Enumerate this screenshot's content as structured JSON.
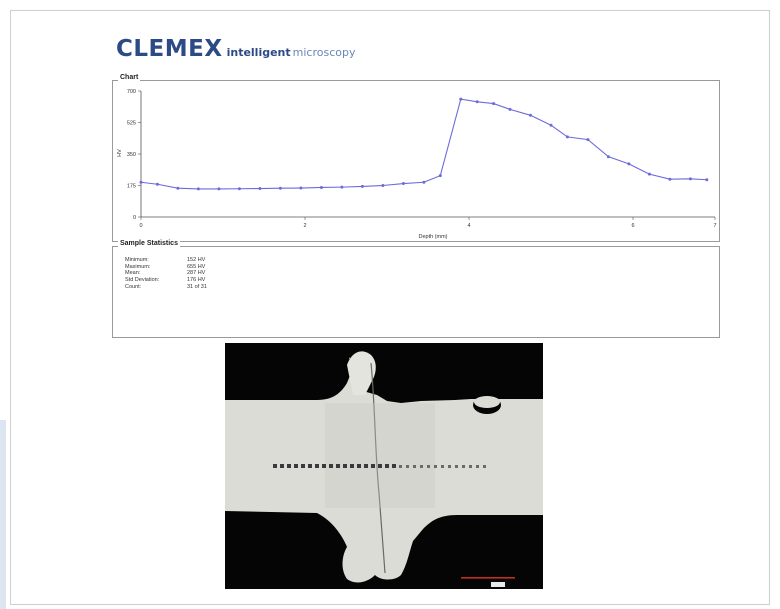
{
  "logo": {
    "brand": "CLEMEX",
    "tagline_bold": "intelligent",
    "tagline_light": "microscopy"
  },
  "chart_panel": {
    "legend": "Chart"
  },
  "chart_data": {
    "type": "line",
    "title": "",
    "xlabel": "Depth (mm)",
    "ylabel": "HV",
    "xlim": [
      0,
      7
    ],
    "ylim": [
      0,
      700
    ],
    "x_ticks": [
      "0",
      "2",
      "4",
      "6",
      "7"
    ],
    "x_tick_values": [
      0,
      2,
      4,
      6,
      7
    ],
    "y_ticks": [
      "0",
      "175",
      "350",
      "525",
      "700"
    ],
    "y_tick_values": [
      0,
      175,
      350,
      525,
      700
    ],
    "grid": false,
    "legend": "none",
    "series": [
      {
        "color": "#6b6bdc",
        "x": [
          0.0,
          0.2,
          0.45,
          0.7,
          0.95,
          1.2,
          1.45,
          1.7,
          1.95,
          2.2,
          2.45,
          2.7,
          2.95,
          3.2,
          3.45,
          3.65,
          3.9,
          4.1,
          4.3,
          4.5,
          4.75,
          5.0,
          5.2,
          5.45,
          5.7,
          5.95,
          6.2,
          6.45,
          6.7,
          6.9
        ],
        "y": [
          193,
          182,
          160,
          156,
          156,
          157,
          158,
          160,
          161,
          164,
          166,
          170,
          175,
          186,
          193,
          230,
          655,
          640,
          630,
          598,
          565,
          510,
          445,
          430,
          335,
          295,
          238,
          210,
          212,
          207
        ]
      }
    ]
  },
  "stats": {
    "legend": "Sample Statistics",
    "rows": [
      {
        "label": "Minimum:",
        "value": "152 HV"
      },
      {
        "label": "Maximum:",
        "value": "655 HV"
      },
      {
        "label": "Mean:",
        "value": "287 HV"
      },
      {
        "label": "Std Deviation:",
        "value": "176 HV"
      },
      {
        "label": "Count:",
        "value": "31 of 31"
      }
    ]
  },
  "colors": {
    "brand": "#2c4a86",
    "series_line": "#6b6bdc",
    "frame_border": "#cfcfcf",
    "micrograph_background": "#050505",
    "micrograph_metal": "#dcdcd6",
    "indent_marks": "#444444",
    "scale_bar": "#c03020"
  }
}
